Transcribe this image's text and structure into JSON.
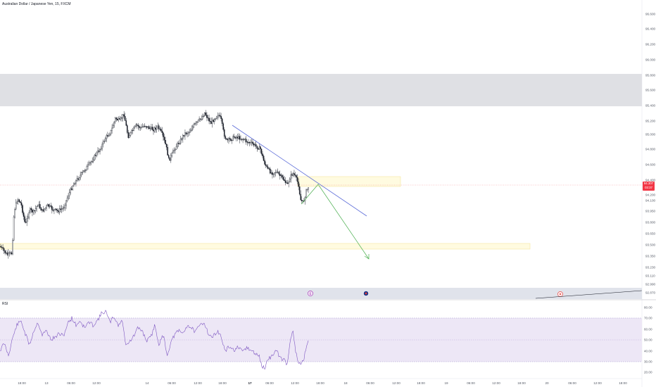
{
  "header": {
    "symbol_title": "Australian Dollar / Japanese Yen, 15, FXCM"
  },
  "price_axis": {
    "labels": [
      "96.600",
      "96.400",
      "96.200",
      "96.000",
      "95.800",
      "95.600",
      "95.400",
      "95.200",
      "95.000",
      "94.800",
      "94.600",
      "94.400",
      "94.200",
      "94.100",
      "93.950",
      "93.800",
      "93.650",
      "93.500",
      "93.350",
      "93.230",
      "93.110",
      "92.990",
      "92.870"
    ]
  },
  "current_price": {
    "price": "94.307",
    "countdown": "03:37",
    "color": "#f23645"
  },
  "rsi": {
    "label": "RSI",
    "axis_labels": [
      "80.00",
      "70.00",
      "60.00",
      "50.00",
      "40.00",
      "30.00",
      "20.00"
    ],
    "line_color": "#7e57c2",
    "band_color": "#ede7f6"
  },
  "time_axis": {
    "labels": [
      {
        "t": "18:00",
        "bold": false
      },
      {
        "t": "13",
        "bold": false
      },
      {
        "t": "06:00",
        "bold": false
      },
      {
        "t": "12:00",
        "bold": false
      },
      {
        "t": "14",
        "bold": false
      },
      {
        "t": "06:00",
        "bold": false
      },
      {
        "t": "12:00",
        "bold": false
      },
      {
        "t": "18:00",
        "bold": false
      },
      {
        "t": "17",
        "bold": true
      },
      {
        "t": "06:00",
        "bold": false
      },
      {
        "t": "12:00",
        "bold": false
      },
      {
        "t": "18:00",
        "bold": false
      },
      {
        "t": "18",
        "bold": false
      },
      {
        "t": "06:00",
        "bold": false
      },
      {
        "t": "12:00",
        "bold": false
      },
      {
        "t": "18:00",
        "bold": false
      },
      {
        "t": "19",
        "bold": false
      },
      {
        "t": "06:00",
        "bold": false
      },
      {
        "t": "12:00",
        "bold": false
      },
      {
        "t": "18:00",
        "bold": false
      },
      {
        "t": "20",
        "bold": false
      },
      {
        "t": "06:00",
        "bold": false
      },
      {
        "t": "12:00",
        "bold": false
      },
      {
        "t": "18:00",
        "bold": false
      }
    ]
  },
  "drawings": {
    "supply_zone_color": "#dfe0e4",
    "demand_zone_color": "#fffbe0",
    "trendline_color": "#5b6bd8",
    "projection_color": "#4caf50"
  },
  "events": [
    {
      "icon": "earnings-event-icon"
    },
    {
      "icon": "flag-event-icon"
    },
    {
      "icon": "red-event-icon"
    }
  ]
}
